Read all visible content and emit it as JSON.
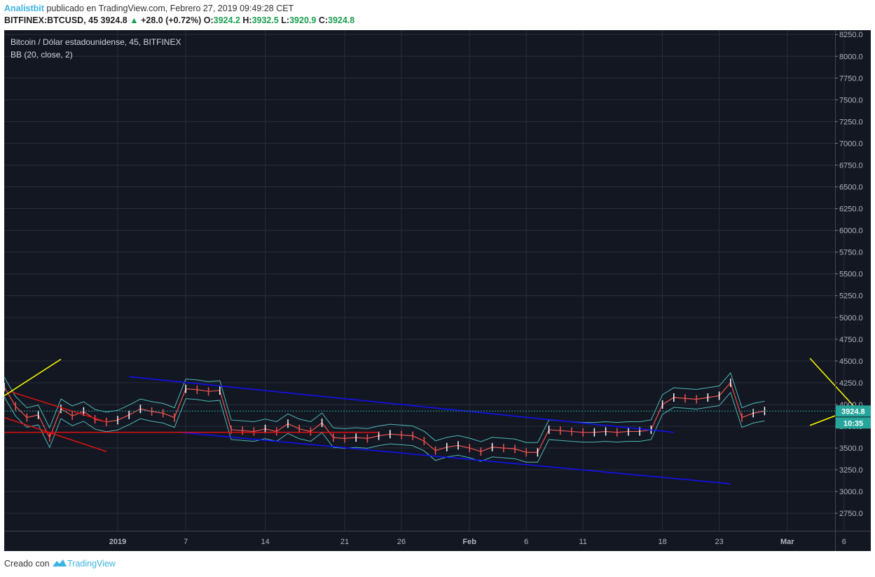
{
  "header": {
    "author": "Analistbit",
    "published": " publicado en TradingView.com, Febrero 27, 2019 09:49:28 CET",
    "symbol": "BITFINEX:BTCUSD, 45",
    "last": "3924.8",
    "change": "+28.0 (+0.72%)",
    "o_label": "O:",
    "o": "3924.2",
    "h_label": "H:",
    "h": "3932.5",
    "l_label": "L:",
    "l": "3920.9",
    "c_label": "C:",
    "c": "3924.8"
  },
  "legend": {
    "title": "Bitcoin / Dólar estadounidense, 45, BITFINEX",
    "indicator": "BB (20, close, 2)"
  },
  "footer": {
    "created": "Creado con",
    "brand": "TradingView"
  },
  "colors": {
    "background": "#131722",
    "grid": "#2a2e39",
    "candle_up": "#ffffff",
    "candle_down": "#ef5350",
    "bollinger": "#4fb8b8",
    "trendline_blue": "#1010ff",
    "trendline_red": "#e01010",
    "trendline_yellow": "#ffff00",
    "price_label": "#26a69a"
  },
  "chart_data": {
    "type": "line",
    "title": "Bitcoin / Dólar estadounidense, 45, BITFINEX",
    "ylim": [
      2550,
      8300
    ],
    "y_ticks": [
      2750,
      3000,
      3250,
      3500,
      3750,
      4000,
      4250,
      4500,
      4750,
      5000,
      5250,
      5500,
      5750,
      6000,
      6250,
      6500,
      6750,
      7000,
      7250,
      7500,
      7750,
      8000,
      8250
    ],
    "y_tick_labels": [
      "2750.0",
      "3000.0",
      "3250.0",
      "3500.0",
      "3750.0",
      "4000.0",
      "4250.0",
      "4500.0",
      "4750.0",
      "5000.0",
      "5250.0",
      "5500.0",
      "5750.0",
      "6000.0",
      "6250.0",
      "6500.0",
      "6750.0",
      "7000.0",
      "7250.0",
      "7500.0",
      "7750.0",
      "8000.0",
      "8250.0"
    ],
    "xlim": [
      0,
      93
    ],
    "x_ticks": [
      {
        "day": 10,
        "label": "2019"
      },
      {
        "day": 16,
        "label": "7"
      },
      {
        "day": 23,
        "label": "14"
      },
      {
        "day": 30,
        "label": "21"
      },
      {
        "day": 35,
        "label": "26"
      },
      {
        "day": 41,
        "label": "Feb"
      },
      {
        "day": 46,
        "label": "6"
      },
      {
        "day": 51,
        "label": "11"
      },
      {
        "day": 58,
        "label": "18"
      },
      {
        "day": 63,
        "label": "23"
      },
      {
        "day": 69,
        "label": "Mar"
      },
      {
        "day": 74,
        "label": "6"
      }
    ],
    "current_price": 3924.8,
    "current_price_label": "3924.8",
    "countdown_label": "10:35",
    "series": [
      {
        "x": [
          0,
          1,
          2,
          3,
          4,
          5,
          6,
          7,
          8,
          9,
          10,
          11,
          12,
          13,
          14,
          15,
          16,
          17,
          18,
          19,
          20,
          21,
          22,
          23,
          24,
          25,
          26,
          27,
          28,
          29,
          30,
          31,
          32,
          33,
          34,
          35,
          36,
          37,
          38,
          39,
          40,
          41,
          42,
          43,
          44,
          45,
          46,
          47,
          48,
          49,
          50,
          51,
          52,
          53,
          54,
          55,
          56,
          57,
          58,
          59,
          60,
          61,
          62,
          63,
          64,
          65,
          66,
          67
        ],
        "values": [
          4200,
          3980,
          3850,
          3880,
          3620,
          3950,
          3870,
          3920,
          3830,
          3800,
          3820,
          3880,
          3950,
          3920,
          3900,
          3850,
          4180,
          4170,
          4150,
          4160,
          3710,
          3700,
          3690,
          3720,
          3690,
          3780,
          3720,
          3690,
          3790,
          3620,
          3610,
          3620,
          3610,
          3640,
          3660,
          3650,
          3640,
          3580,
          3470,
          3510,
          3530,
          3500,
          3460,
          3510,
          3500,
          3490,
          3450,
          3450,
          3710,
          3700,
          3690,
          3680,
          3680,
          3690,
          3680,
          3690,
          3690,
          3710,
          4000,
          4080,
          4070,
          4060,
          4080,
          4100,
          4250,
          3850,
          3900,
          3925
        ]
      }
    ],
    "trendlines": [
      {
        "color": "blue",
        "points": [
          [
            11,
            4320
          ],
          [
            59,
            3680
          ]
        ]
      },
      {
        "color": "blue",
        "points": [
          [
            15.5,
            3680
          ],
          [
            64,
            3090
          ]
        ]
      },
      {
        "color": "red",
        "points": [
          [
            0,
            3680
          ],
          [
            33,
            3680
          ]
        ]
      },
      {
        "color": "red",
        "points": [
          [
            0.5,
            4150
          ],
          [
            9,
            3800
          ]
        ]
      },
      {
        "color": "red",
        "points": [
          [
            0,
            3850
          ],
          [
            9,
            3460
          ]
        ]
      },
      {
        "color": "yellow",
        "points": [
          [
            0,
            4100
          ],
          [
            5,
            4520
          ]
        ]
      },
      {
        "color": "yellow",
        "points": [
          [
            71,
            4530
          ],
          [
            75,
            3960
          ]
        ]
      },
      {
        "color": "yellow",
        "points": [
          [
            71,
            3760
          ],
          [
            75,
            3960
          ]
        ]
      }
    ]
  }
}
